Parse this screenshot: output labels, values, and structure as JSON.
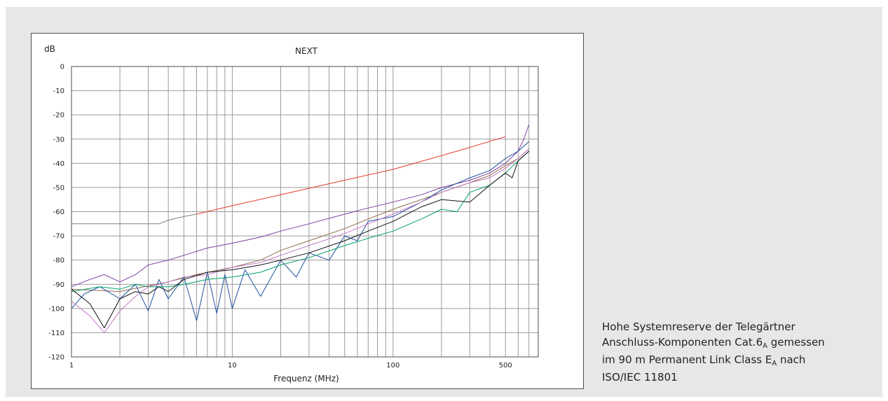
{
  "caption": {
    "line1": "Hohe Systemreserve der Telegärtner",
    "line2_a": "Anschluss-Komponenten Cat.6",
    "line2_sub": "A",
    "line2_b": " gemessen",
    "line3_a": "im 90 m Permanent Link Class E",
    "line3_sub": "A",
    "line3_b": " nach",
    "line4": "ISO/IEC 11801"
  },
  "chart_data": {
    "type": "line",
    "title": "NEXT",
    "ylabel": "dB",
    "xlabel": "Frequenz (MHz)",
    "x_scale": "log",
    "xlim": [
      1,
      800
    ],
    "ylim": [
      -120,
      0
    ],
    "x_ticks": [
      1,
      10,
      100,
      500
    ],
    "x_tick_labels": [
      "1",
      "10",
      "100",
      "500"
    ],
    "y_ticks": [
      0,
      -10,
      -20,
      -30,
      -40,
      -50,
      -60,
      -70,
      -80,
      -90,
      -100,
      -110,
      -120
    ],
    "y_tick_labels": [
      "0",
      "-10",
      "-20",
      "-30",
      "-40",
      "-50",
      "-60",
      "-70",
      "-80",
      "-90",
      "-100",
      "-110",
      "-120"
    ],
    "grid": true,
    "series": [
      {
        "color": "#e8392c",
        "x": [
          6,
          10,
          20,
          50,
          100,
          250,
          500
        ],
        "y": [
          -61,
          -57.5,
          -53,
          -47,
          -42.5,
          -35,
          -29
        ]
      },
      {
        "color": "#808080",
        "x": [
          1,
          3.5,
          4,
          5,
          6
        ],
        "y": [
          -65,
          -65,
          -63.5,
          -62,
          -61
        ]
      },
      {
        "color": "#7b3fa0",
        "x": [
          1,
          1.3,
          1.6,
          2,
          2.5,
          3,
          4,
          5,
          7,
          10,
          15,
          20,
          30,
          50,
          70,
          100,
          150,
          200,
          300,
          400,
          500,
          600,
          650,
          700
        ],
        "y": [
          -91,
          -88,
          -86,
          -89,
          -86,
          -82,
          -80,
          -78,
          -75,
          -73,
          -70.5,
          -68,
          -65,
          -61,
          -58.5,
          -56,
          -53,
          -50,
          -47,
          -44,
          -40,
          -35,
          -30,
          -24
        ]
      },
      {
        "color": "#8e6b4a",
        "x": [
          1,
          2,
          4,
          6,
          10,
          15,
          20,
          30,
          50,
          70,
          100,
          150,
          200,
          300,
          400,
          500,
          600,
          700
        ],
        "y": [
          -92,
          -93,
          -89,
          -86,
          -83,
          -80,
          -76,
          -72,
          -67,
          -63,
          -59,
          -55,
          -52,
          -48,
          -45,
          -41,
          -38,
          -34
        ]
      },
      {
        "color": "#1f4fa0",
        "x": [
          1,
          1.2,
          1.5,
          2,
          2.5,
          3,
          3.5,
          4,
          5,
          6,
          7,
          8,
          9,
          10,
          12,
          15,
          20,
          25,
          30,
          40,
          50,
          60,
          70,
          100,
          150,
          200,
          300,
          400,
          500,
          600,
          700
        ],
        "y": [
          -100,
          -94,
          -91,
          -96,
          -90,
          -101,
          -88,
          -96,
          -87,
          -105,
          -85,
          -102,
          -86,
          -100,
          -84,
          -95,
          -80,
          -87,
          -77,
          -80,
          -70,
          -72,
          -64,
          -62,
          -56,
          -51,
          -46,
          -43,
          -38,
          -35,
          -31
        ]
      },
      {
        "color": "#00a06e",
        "x": [
          1,
          1.5,
          2,
          2.5,
          3,
          4,
          5,
          7,
          10,
          15,
          20,
          30,
          50,
          70,
          100,
          150,
          200,
          250,
          300,
          400,
          500,
          600,
          700
        ],
        "y": [
          -93,
          -91,
          -92,
          -90,
          -91,
          -91,
          -90,
          -88,
          -87,
          -85,
          -82,
          -79,
          -74,
          -71,
          -68,
          -63,
          -59,
          -60,
          -52,
          -49,
          -44,
          -39,
          -35
        ]
      },
      {
        "color": "#c47ac6",
        "x": [
          1,
          1.3,
          1.6,
          2,
          2.5,
          3,
          4,
          5,
          7,
          10,
          15,
          20,
          30,
          50,
          70,
          100,
          150,
          200,
          300,
          400,
          500,
          600,
          700
        ],
        "y": [
          -97,
          -103,
          -110,
          -101,
          -95,
          -91,
          -89,
          -87,
          -86,
          -83,
          -81,
          -78,
          -74,
          -69,
          -65,
          -61,
          -56,
          -52,
          -48,
          -46,
          -42,
          -38,
          -34
        ]
      },
      {
        "color": "#111111",
        "x": [
          1,
          1.3,
          1.6,
          2,
          2.5,
          3,
          3.5,
          4,
          5,
          7,
          10,
          15,
          20,
          30,
          50,
          70,
          100,
          150,
          200,
          300,
          400,
          500,
          550,
          600,
          700
        ],
        "y": [
          -92,
          -98,
          -108,
          -96,
          -93,
          -94,
          -91,
          -93,
          -88,
          -85,
          -84,
          -82,
          -80,
          -77,
          -72,
          -68,
          -64,
          -58,
          -55,
          -56,
          -49,
          -44,
          -46,
          -39,
          -35
        ]
      }
    ]
  }
}
